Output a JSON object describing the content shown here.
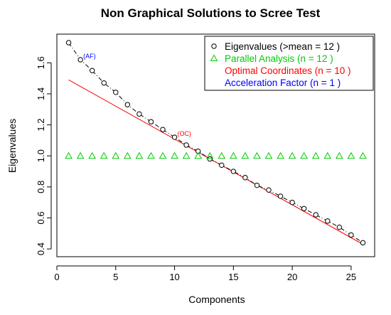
{
  "chart_data": {
    "type": "scatter",
    "title": "Non Graphical Solutions to Scree Test",
    "xlabel": "Components",
    "ylabel": "Eigenvalues",
    "xlim": [
      0,
      27
    ],
    "ylim": [
      0.4,
      1.75
    ],
    "x_ticks": [
      0,
      5,
      10,
      15,
      20,
      25
    ],
    "y_ticks": [
      0.4,
      0.6,
      0.8,
      1.0,
      1.2,
      1.4,
      1.6
    ],
    "x_tick_labels": [
      "0",
      "5",
      "10",
      "15",
      "20",
      "25"
    ],
    "y_tick_labels": [
      "0.4",
      "0.6",
      "0.8",
      "1.0",
      "1.2",
      "1.4",
      "1.6"
    ],
    "grid": false,
    "legend_position": "top-right",
    "series": [
      {
        "name": "Eigenvalues (>mean  =  12 )",
        "marker": "circle",
        "line": "dash-dot",
        "color": "#000000",
        "x": [
          1,
          2,
          3,
          4,
          5,
          6,
          7,
          8,
          9,
          10,
          11,
          12,
          13,
          14,
          15,
          16,
          17,
          18,
          19,
          20,
          21,
          22,
          23,
          24,
          25,
          26
        ],
        "values": [
          1.73,
          1.62,
          1.55,
          1.47,
          1.41,
          1.33,
          1.27,
          1.22,
          1.17,
          1.12,
          1.07,
          1.03,
          0.98,
          0.94,
          0.9,
          0.86,
          0.81,
          0.78,
          0.74,
          0.7,
          0.66,
          0.62,
          0.58,
          0.54,
          0.49,
          0.44
        ]
      },
      {
        "name": "Parallel Analysis (n =  12 )",
        "marker": "triangle",
        "color": "#00cc00",
        "x": [
          1,
          2,
          3,
          4,
          5,
          6,
          7,
          8,
          9,
          10,
          11,
          12,
          13,
          14,
          15,
          16,
          17,
          18,
          19,
          20,
          21,
          22,
          23,
          24,
          25,
          26
        ],
        "values": [
          1,
          1,
          1,
          1,
          1,
          1,
          1,
          1,
          1,
          1,
          1,
          1,
          1,
          1,
          1,
          1,
          1,
          1,
          1,
          1,
          1,
          1,
          1,
          1,
          1,
          1
        ]
      },
      {
        "name": "Optimal Coordinates (n =  10 )",
        "type": "line",
        "color": "#ff0000",
        "x": [
          1,
          26
        ],
        "values": [
          1.49,
          0.43
        ]
      },
      {
        "name": "Acceleration Factor (n =  1 )",
        "color": "#0000ff"
      }
    ],
    "annotations": [
      {
        "text": "(AF)",
        "x": 2,
        "y": 1.62,
        "color": "#0000ff"
      },
      {
        "text": "(OC)",
        "x": 10,
        "y": 1.12,
        "color": "#ff0000"
      }
    ]
  }
}
